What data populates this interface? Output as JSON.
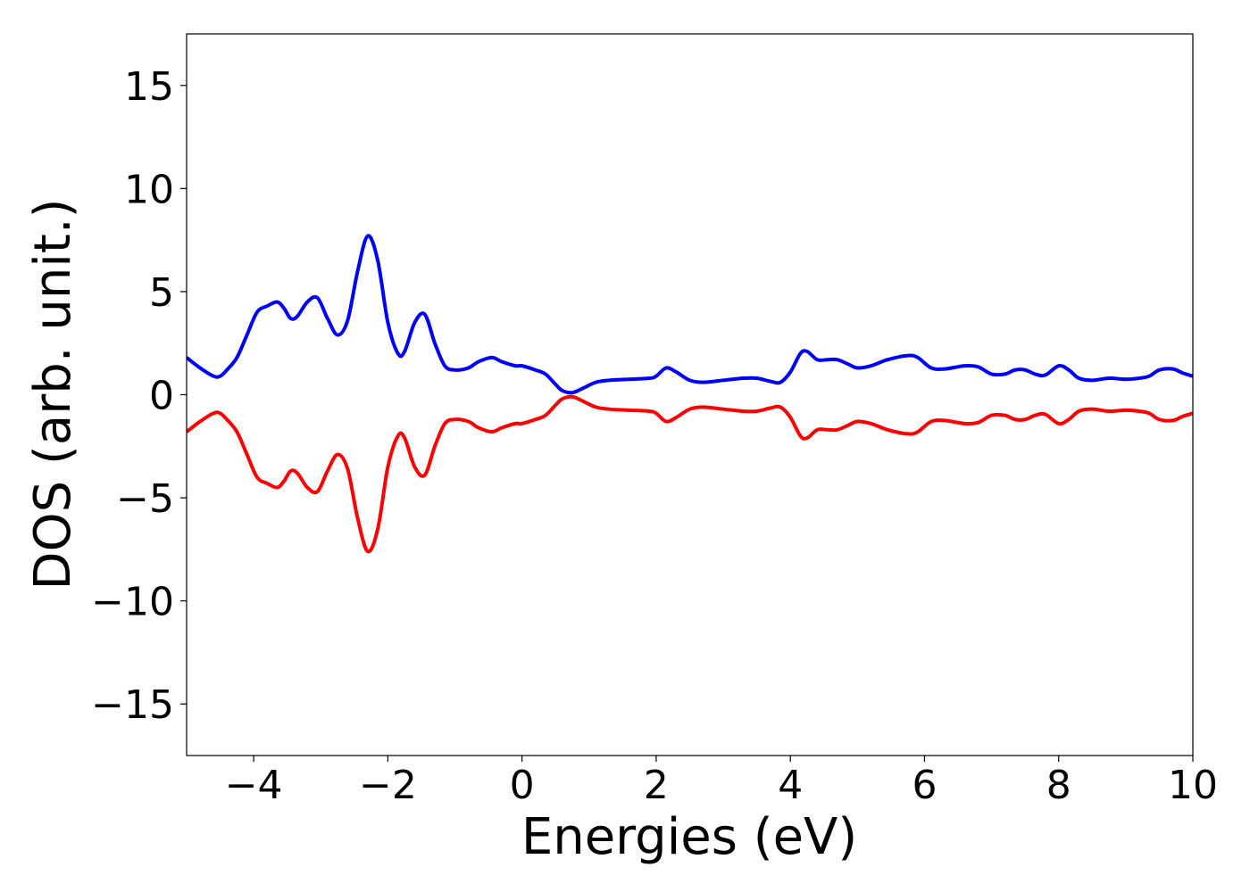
{
  "chart_data": {
    "type": "line",
    "title": "",
    "xlabel": "Energies (eV)",
    "ylabel": "DOS (arb. unit.)",
    "xlim": [
      -5,
      10
    ],
    "ylim": [
      -17.5,
      17.5
    ],
    "xticks": [
      -4,
      -2,
      0,
      2,
      4,
      6,
      8,
      10
    ],
    "xtick_labels": [
      "−4",
      "−2",
      "0",
      "2",
      "4",
      "6",
      "8",
      "10"
    ],
    "yticks": [
      -15,
      -10,
      -5,
      0,
      5,
      10,
      15
    ],
    "ytick_labels": [
      "−15",
      "−10",
      "−5",
      "0",
      "5",
      "10",
      "15"
    ],
    "grid": false,
    "legend": "none",
    "series": [
      {
        "color": "#0000ff",
        "x": [
          -5.0,
          -4.8,
          -4.6,
          -4.5,
          -4.4,
          -4.25,
          -4.1,
          -3.95,
          -3.8,
          -3.65,
          -3.55,
          -3.45,
          -3.35,
          -3.2,
          -3.05,
          -2.9,
          -2.75,
          -2.6,
          -2.45,
          -2.3,
          -2.15,
          -2.0,
          -1.85,
          -1.75,
          -1.6,
          -1.45,
          -1.3,
          -1.15,
          -1.0,
          -0.8,
          -0.65,
          -0.45,
          -0.3,
          -0.1,
          0.0,
          0.2,
          0.35,
          0.5,
          0.6,
          0.75,
          0.9,
          1.1,
          1.3,
          1.6,
          1.9,
          2.0,
          2.15,
          2.3,
          2.5,
          2.7,
          3.0,
          3.3,
          3.5,
          3.7,
          3.85,
          4.0,
          4.15,
          4.25,
          4.4,
          4.55,
          4.7,
          4.85,
          5.0,
          5.2,
          5.45,
          5.75,
          5.9,
          6.1,
          6.3,
          6.6,
          6.8,
          7.0,
          7.2,
          7.35,
          7.5,
          7.65,
          7.8,
          8.0,
          8.15,
          8.3,
          8.5,
          8.75,
          9.0,
          9.2,
          9.35,
          9.5,
          9.7,
          9.85,
          10.0
        ],
        "values": [
          1.8,
          1.3,
          0.9,
          0.9,
          1.2,
          1.8,
          2.9,
          4.0,
          4.3,
          4.5,
          4.2,
          3.7,
          3.8,
          4.5,
          4.7,
          3.7,
          2.9,
          3.6,
          6.0,
          7.7,
          6.5,
          3.5,
          2.0,
          2.1,
          3.5,
          3.9,
          2.5,
          1.4,
          1.2,
          1.3,
          1.6,
          1.8,
          1.6,
          1.4,
          1.4,
          1.2,
          1.0,
          0.5,
          0.2,
          0.1,
          0.3,
          0.6,
          0.7,
          0.75,
          0.8,
          0.9,
          1.3,
          1.1,
          0.7,
          0.6,
          0.7,
          0.8,
          0.8,
          0.65,
          0.6,
          1.1,
          2.0,
          2.1,
          1.7,
          1.7,
          1.7,
          1.5,
          1.3,
          1.4,
          1.7,
          1.9,
          1.8,
          1.3,
          1.25,
          1.4,
          1.35,
          1.0,
          1.0,
          1.2,
          1.2,
          1.0,
          0.95,
          1.4,
          1.2,
          0.8,
          0.7,
          0.8,
          0.75,
          0.8,
          0.9,
          1.2,
          1.25,
          1.05,
          0.9
        ]
      },
      {
        "color": "#ff0000",
        "x": [
          -5.0,
          -4.8,
          -4.6,
          -4.5,
          -4.4,
          -4.25,
          -4.1,
          -3.95,
          -3.8,
          -3.65,
          -3.55,
          -3.45,
          -3.35,
          -3.2,
          -3.05,
          -2.9,
          -2.75,
          -2.6,
          -2.45,
          -2.3,
          -2.15,
          -2.0,
          -1.85,
          -1.75,
          -1.6,
          -1.45,
          -1.3,
          -1.15,
          -1.0,
          -0.8,
          -0.65,
          -0.45,
          -0.3,
          -0.1,
          0.0,
          0.2,
          0.35,
          0.5,
          0.6,
          0.75,
          0.9,
          1.1,
          1.3,
          1.6,
          1.9,
          2.0,
          2.15,
          2.3,
          2.5,
          2.7,
          3.0,
          3.3,
          3.5,
          3.7,
          3.85,
          4.0,
          4.15,
          4.25,
          4.4,
          4.55,
          4.7,
          4.85,
          5.0,
          5.2,
          5.45,
          5.75,
          5.9,
          6.1,
          6.3,
          6.6,
          6.8,
          7.0,
          7.2,
          7.35,
          7.5,
          7.65,
          7.8,
          8.0,
          8.15,
          8.3,
          8.5,
          8.75,
          9.0,
          9.2,
          9.35,
          9.5,
          9.7,
          9.85,
          10.0
        ],
        "values": [
          -1.8,
          -1.3,
          -0.9,
          -0.9,
          -1.2,
          -1.8,
          -2.9,
          -4.0,
          -4.3,
          -4.5,
          -4.2,
          -3.7,
          -3.8,
          -4.5,
          -4.7,
          -3.7,
          -2.9,
          -3.6,
          -6.0,
          -7.6,
          -6.5,
          -3.5,
          -2.0,
          -2.1,
          -3.5,
          -3.9,
          -2.5,
          -1.4,
          -1.2,
          -1.3,
          -1.6,
          -1.8,
          -1.6,
          -1.4,
          -1.4,
          -1.2,
          -1.0,
          -0.5,
          -0.2,
          -0.1,
          -0.3,
          -0.6,
          -0.7,
          -0.75,
          -0.8,
          -0.9,
          -1.3,
          -1.1,
          -0.7,
          -0.6,
          -0.7,
          -0.8,
          -0.8,
          -0.65,
          -0.6,
          -1.1,
          -2.0,
          -2.1,
          -1.7,
          -1.7,
          -1.7,
          -1.5,
          -1.3,
          -1.4,
          -1.7,
          -1.9,
          -1.8,
          -1.3,
          -1.25,
          -1.4,
          -1.35,
          -1.0,
          -1.0,
          -1.2,
          -1.2,
          -1.0,
          -0.95,
          -1.4,
          -1.2,
          -0.8,
          -0.7,
          -0.8,
          -0.75,
          -0.8,
          -0.9,
          -1.2,
          -1.25,
          -1.05,
          -0.9
        ]
      }
    ]
  }
}
